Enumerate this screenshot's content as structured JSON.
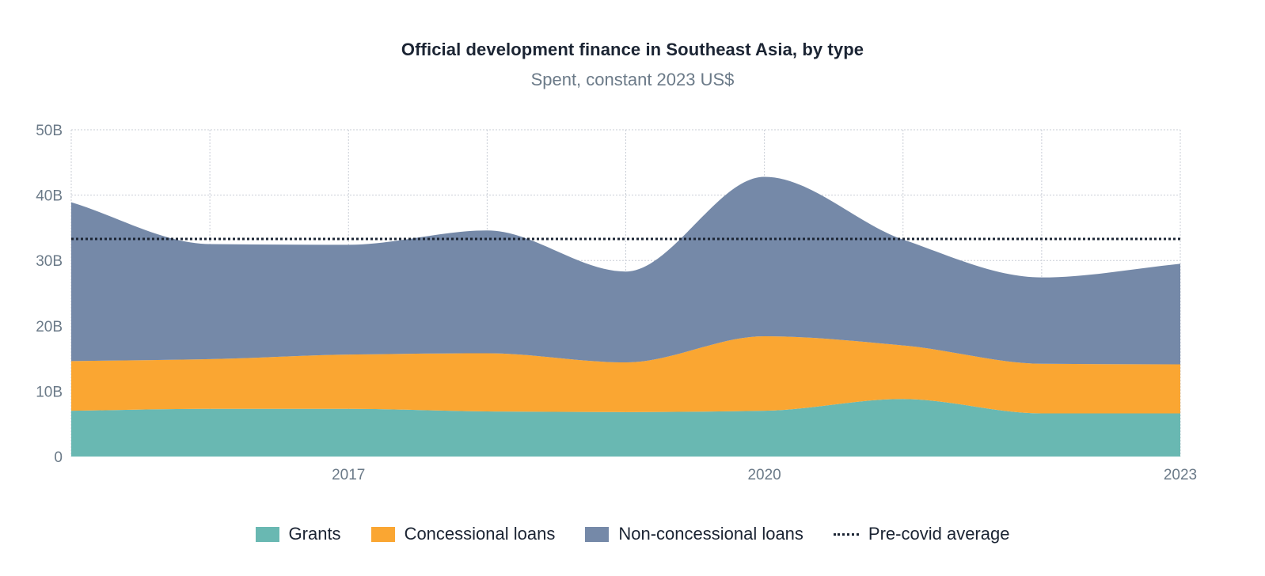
{
  "chart_data": {
    "type": "area",
    "stacked": true,
    "title": "Official development finance in Southeast Asia, by type",
    "subtitle": "Spent, constant 2023 US$",
    "x": [
      2015,
      2016,
      2017,
      2018,
      2019,
      2020,
      2021,
      2022,
      2023
    ],
    "xticks": [
      "2017",
      "2020",
      "2023"
    ],
    "xtick_values": [
      2017,
      2020,
      2023
    ],
    "yticks": [
      "0",
      "10B",
      "20B",
      "30B",
      "40B",
      "50B"
    ],
    "ytick_values": [
      0,
      10,
      20,
      30,
      40,
      50
    ],
    "ylim": [
      0,
      50
    ],
    "xlim": [
      2015,
      2023
    ],
    "series": [
      {
        "name": "Grants",
        "color": "#69b8b2",
        "values": [
          7.0,
          7.3,
          7.3,
          6.9,
          6.8,
          7.0,
          8.8,
          6.6,
          6.6
        ]
      },
      {
        "name": "Concessional loans",
        "color": "#faa632",
        "values": [
          7.6,
          7.6,
          8.3,
          8.9,
          7.6,
          11.4,
          8.2,
          7.6,
          7.5
        ]
      },
      {
        "name": "Non-concessional loans",
        "color": "#7589a8",
        "values": [
          24.3,
          17.6,
          16.8,
          18.8,
          13.9,
          24.4,
          16.2,
          13.2,
          15.4
        ]
      }
    ],
    "reference_line": {
      "name": "Pre-covid average",
      "value": 33.3,
      "style": "dotted",
      "color": "#1b2433"
    },
    "legend": [
      {
        "label": "Grants",
        "color": "#69b8b2",
        "kind": "area"
      },
      {
        "label": "Concessional loans",
        "color": "#faa632",
        "kind": "area"
      },
      {
        "label": "Non-concessional loans",
        "color": "#7589a8",
        "kind": "area"
      },
      {
        "label": "Pre-covid average",
        "color": "#1b2433",
        "kind": "dotted-line"
      }
    ],
    "legend_position": "bottom-center",
    "grid": true
  }
}
